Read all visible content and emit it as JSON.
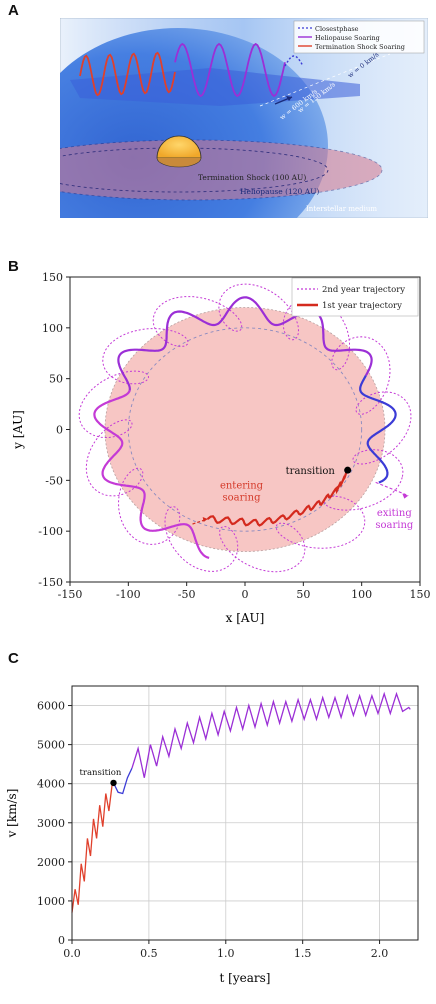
{
  "panels": {
    "a": "A",
    "b": "B",
    "c": "C"
  },
  "colors": {
    "closest_phase": "#3b3bd6",
    "heliopause_soaring": "#9b2fd6",
    "termination_soaring": "#e0402c",
    "second_year": "#c43ad6",
    "first_year": "#d42a1e",
    "heliosphere_fill": "#f7c6c4",
    "sun": "#f5b93a",
    "transition_point": "#000000"
  },
  "panel_a": {
    "legend": [
      "Closestphase",
      "Heliopause Soaring",
      "Termination Shock Soaring"
    ],
    "labels": {
      "termination_shock": "Termination Shock (100 AU)",
      "heliopause": "Heliopause (120 AU)",
      "interstellar": "Interstellar medium",
      "w0": "w = 0 km/s",
      "w150": "w = 150 km/s",
      "w600": "w = 600 km/s"
    }
  },
  "chart_data": [
    {
      "type": "line",
      "panel": "B",
      "xlabel": "x [AU]",
      "ylabel": "y [AU]",
      "xlim": [
        -150,
        150
      ],
      "ylim": [
        -150,
        150
      ],
      "xticks": [
        -150,
        -100,
        -50,
        0,
        50,
        100,
        150
      ],
      "yticks": [
        -150,
        -100,
        -50,
        0,
        50,
        100,
        150
      ],
      "grid": false,
      "legend_position": "top-right",
      "legend": [
        "2nd year trajectory",
        "1st year trajectory"
      ],
      "annotations": {
        "transition": "transition",
        "entering": [
          "entering",
          "soaring"
        ],
        "exiting": [
          "exiting",
          "soaring"
        ]
      },
      "heliopause_radius": 120,
      "termination_shock_radius": 100,
      "transition_point": [
        88,
        -40
      ],
      "soaring_path": {
        "mean_radius": 118,
        "amplitude": 12,
        "lobes": 13
      },
      "first_year_path": [
        [
          -32,
          -88
        ],
        [
          -10,
          -90
        ],
        [
          10,
          -92
        ],
        [
          30,
          -88
        ],
        [
          50,
          -80
        ],
        [
          65,
          -72
        ],
        [
          78,
          -60
        ],
        [
          84,
          -50
        ],
        [
          88,
          -40
        ]
      ],
      "loop_path": {
        "radius": 130,
        "amplitude": 12,
        "lobes": 13,
        "loop_size": 22
      },
      "exiting_arrow": [
        [
          112,
          -52
        ],
        [
          140,
          -65
        ]
      ]
    },
    {
      "type": "line",
      "panel": "C",
      "xlabel": "t [years]",
      "ylabel": "v [km/s]",
      "xlim": [
        0,
        2.25
      ],
      "ylim": [
        0,
        6500
      ],
      "xticks": [
        0.0,
        0.5,
        1.0,
        1.5,
        2.0
      ],
      "yticks": [
        0,
        1000,
        2000,
        3000,
        4000,
        5000,
        6000
      ],
      "grid": true,
      "annotation": "transition",
      "transition_point": [
        0.27,
        4020
      ],
      "series": [
        {
          "segment": "termination_soaring",
          "x": [
            0.0,
            0.02,
            0.04,
            0.06,
            0.08,
            0.1,
            0.12,
            0.14,
            0.16,
            0.18,
            0.2,
            0.22,
            0.24,
            0.26,
            0.27
          ],
          "y": [
            700,
            1300,
            900,
            1950,
            1500,
            2600,
            2150,
            3100,
            2600,
            3450,
            2900,
            3750,
            3300,
            3950,
            4020
          ]
        },
        {
          "segment": "closest_phase",
          "x": [
            0.27,
            0.3,
            0.33,
            0.36,
            0.39
          ],
          "y": [
            4020,
            3780,
            3750,
            4150,
            4400
          ]
        },
        {
          "segment": "heliopause_soaring",
          "x": [
            0.39,
            0.43,
            0.47,
            0.51,
            0.55,
            0.59,
            0.63,
            0.67,
            0.71,
            0.75,
            0.79,
            0.83,
            0.87,
            0.91,
            0.95,
            0.99,
            1.03,
            1.07,
            1.11,
            1.15,
            1.19,
            1.23,
            1.27,
            1.31,
            1.35,
            1.39,
            1.43,
            1.47,
            1.51,
            1.55,
            1.59,
            1.63,
            1.67,
            1.71,
            1.75,
            1.79,
            1.83,
            1.87,
            1.91,
            1.95,
            1.99,
            2.03,
            2.07,
            2.11,
            2.15,
            2.19,
            2.2
          ],
          "y": [
            4400,
            4900,
            4150,
            5000,
            4450,
            5200,
            4700,
            5400,
            4900,
            5550,
            5050,
            5700,
            5150,
            5800,
            5250,
            5850,
            5350,
            5950,
            5400,
            6000,
            5450,
            6050,
            5500,
            6100,
            5550,
            6100,
            5600,
            6150,
            5650,
            6150,
            5650,
            6200,
            5700,
            6200,
            5700,
            6250,
            5750,
            6250,
            5750,
            6250,
            5800,
            6300,
            5800,
            6300,
            5850,
            5950,
            5900
          ]
        }
      ]
    }
  ]
}
